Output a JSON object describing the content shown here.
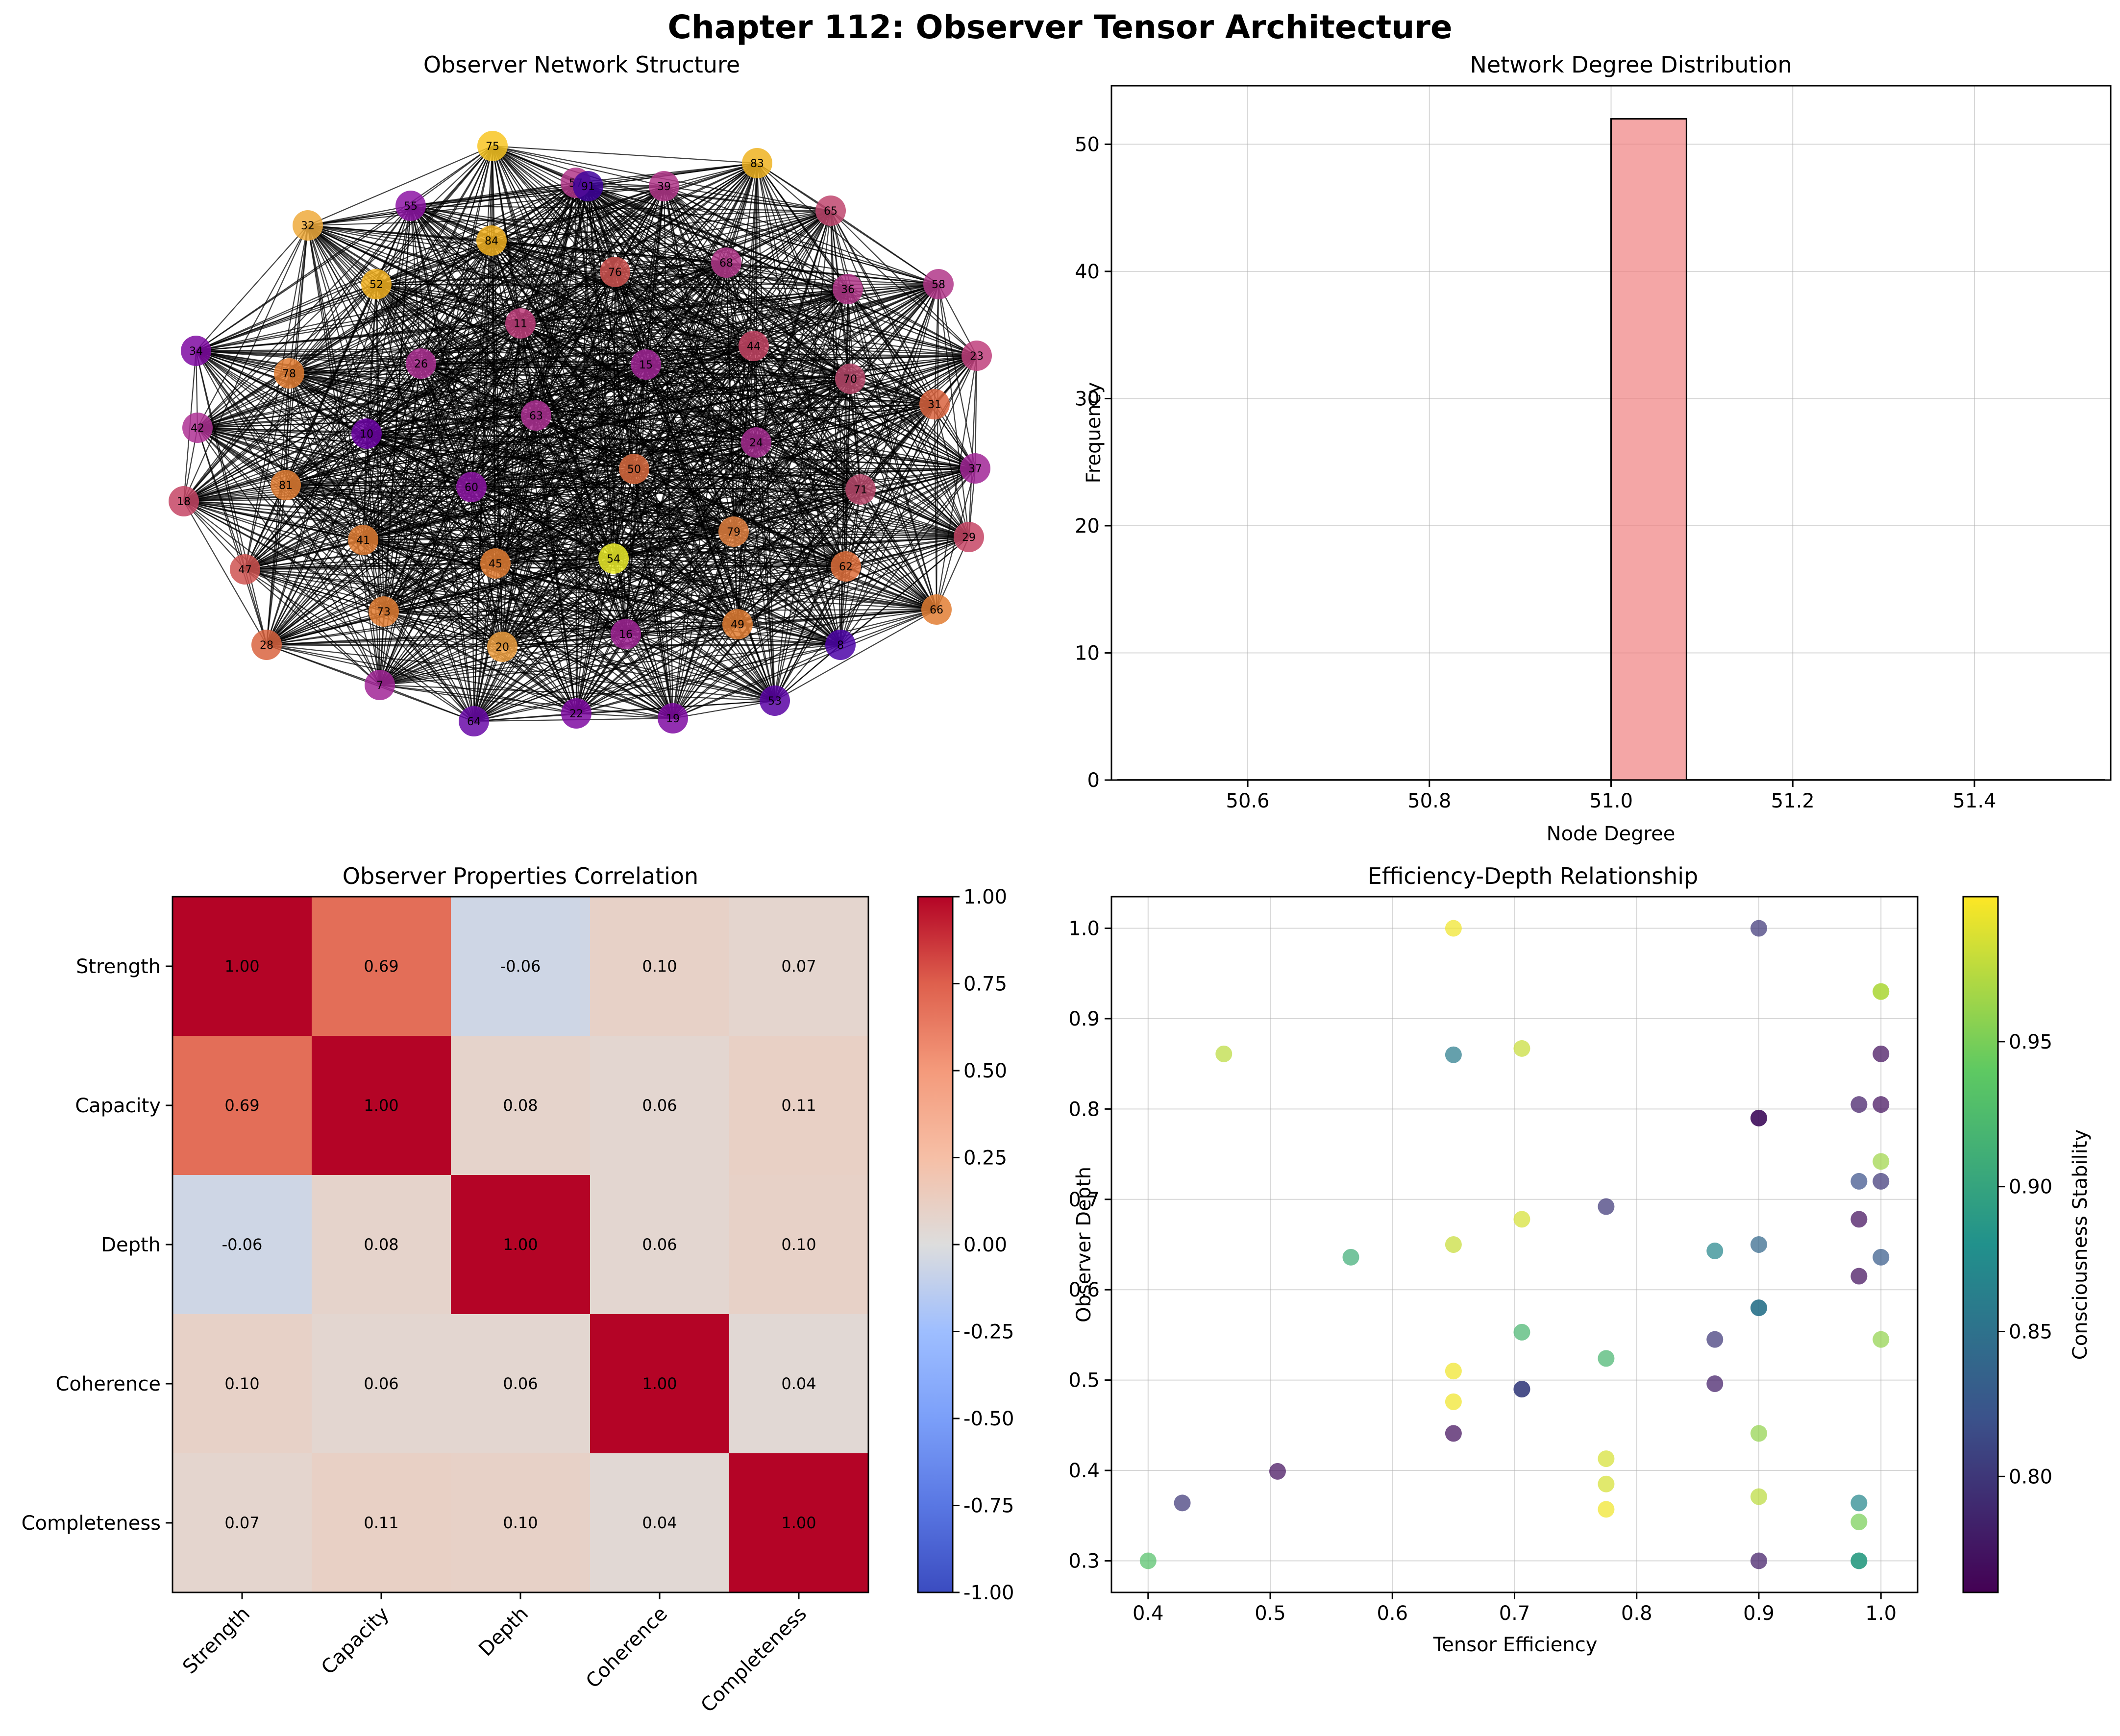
{
  "figure_title": "Chapter 112: Observer Tensor Architecture",
  "chart_data": [
    {
      "type": "network",
      "title": "Observer Network Structure",
      "node_labels": [
        "75",
        "83",
        "57",
        "39",
        "55",
        "32",
        "84",
        "76",
        "68",
        "65",
        "58",
        "52",
        "36",
        "34",
        "78",
        "11",
        "44",
        "23",
        "26",
        "15",
        "70",
        "42",
        "10",
        "63",
        "24",
        "50",
        "31",
        "37",
        "18",
        "81",
        "60",
        "71",
        "41",
        "79",
        "47",
        "45",
        "54",
        "62",
        "29",
        "73",
        "66",
        "28",
        "49",
        "16",
        "20",
        "8",
        "7",
        "53",
        "64",
        "22",
        "19",
        "91"
      ],
      "node_colors": [
        "#F8C523",
        "#EFB321",
        "#B2378A",
        "#B2378A",
        "#8D15A4",
        "#EEAA3C",
        "#F2B121",
        "#CF5451",
        "#B2378A",
        "#BF466F",
        "#B2378A",
        "#F2B121",
        "#B2378A",
        "#7F0AA2",
        "#E27E34",
        "#BF3F7D",
        "#C54565",
        "#BF3F7D",
        "#AE3194",
        "#A12696",
        "#B8496C",
        "#AE3194",
        "#6D04A6",
        "#AE3194",
        "#A52C8F",
        "#D96B3F",
        "#D9643F",
        "#A12696",
        "#C54565",
        "#E27E34",
        "#8D15A4",
        "#B8496C",
        "#E27E34",
        "#E2803F",
        "#CF5451",
        "#E27E34",
        "#ECED2A",
        "#DF6F3B",
        "#C54565",
        "#E27E34",
        "#E27E34",
        "#D9643F",
        "#E27E34",
        "#A12696",
        "#F0A142",
        "#4D05A8",
        "#A12696",
        "#5A03A4",
        "#6A0BA8",
        "#7F0AA2",
        "#7F0AA2",
        "#3F049C"
      ]
    },
    {
      "type": "bar",
      "title": "Network Degree Distribution",
      "xlabel": "Node Degree",
      "ylabel": "Frequency",
      "xlim": [
        50.45,
        51.55
      ],
      "ylim": [
        0,
        54.6
      ],
      "x_ticks": [
        "50.6",
        "50.8",
        "51.0",
        "51.2",
        "51.4"
      ],
      "y_ticks": [
        "0",
        "10",
        "20",
        "30",
        "40",
        "50"
      ],
      "bars": [
        {
          "x_start": 51.0,
          "x_end": 51.083,
          "value": 52
        }
      ],
      "bar_color": "#F08080",
      "grid": true
    },
    {
      "type": "heatmap",
      "title": "Observer Properties Correlation",
      "rows": [
        "Strength",
        "Capacity",
        "Depth",
        "Coherence",
        "Completeness"
      ],
      "columns": [
        "Strength",
        "Capacity",
        "Depth",
        "Coherence",
        "Completeness"
      ],
      "values": [
        [
          1.0,
          0.69,
          -0.06,
          0.1,
          0.07
        ],
        [
          0.69,
          1.0,
          0.08,
          0.06,
          0.11
        ],
        [
          -0.06,
          0.08,
          1.0,
          0.06,
          0.1
        ],
        [
          0.1,
          0.06,
          0.06,
          1.0,
          0.04
        ],
        [
          0.07,
          0.11,
          0.1,
          0.04,
          1.0
        ]
      ],
      "labels": [
        [
          "1.00",
          "0.69",
          "-0.06",
          "0.10",
          "0.07"
        ],
        [
          "0.69",
          "1.00",
          "0.08",
          "0.06",
          "0.11"
        ],
        [
          "-0.06",
          "0.08",
          "1.00",
          "0.06",
          "0.10"
        ],
        [
          "0.10",
          "0.06",
          "0.06",
          "1.00",
          "0.04"
        ],
        [
          "0.07",
          "0.11",
          "0.10",
          "0.04",
          "1.00"
        ]
      ],
      "colormap": "coolwarm",
      "colorbar_ticks": [
        "1.00",
        "0.75",
        "0.50",
        "0.25",
        "0.00",
        "-0.25",
        "-0.50",
        "-0.75",
        "-1.00"
      ],
      "vmin": -1.0,
      "vmax": 1.0
    },
    {
      "type": "scatter",
      "title": "Efficiency-Depth Relationship",
      "xlabel": "Tensor Efficiency",
      "ylabel": "Observer Depth",
      "colorbar_label": "Consciousness Stability",
      "colorbar_ticks": [
        "0.95",
        "0.90",
        "0.85",
        "0.80"
      ],
      "xlim": [
        0.37,
        1.03
      ],
      "ylim": [
        0.265,
        1.035
      ],
      "x_ticks": [
        "0.4",
        "0.5",
        "0.6",
        "0.7",
        "0.8",
        "0.9",
        "1.0"
      ],
      "y_ticks": [
        "0.3",
        "0.4",
        "0.5",
        "0.6",
        "0.7",
        "0.8",
        "0.9",
        "1.0"
      ],
      "clim": [
        0.76,
        1.0
      ],
      "grid": true,
      "points": [
        {
          "x": 0.65,
          "y": 1.0,
          "c": 0.995
        },
        {
          "x": 0.9,
          "y": 1.0,
          "c": 0.8
        },
        {
          "x": 1.0,
          "y": 0.93,
          "c": 0.975
        },
        {
          "x": 1.0,
          "y": 0.93,
          "c": 0.97
        },
        {
          "x": 0.462,
          "y": 0.861,
          "c": 0.975
        },
        {
          "x": 0.65,
          "y": 0.86,
          "c": 0.86
        },
        {
          "x": 0.706,
          "y": 0.867,
          "c": 0.98
        },
        {
          "x": 1.0,
          "y": 0.861,
          "c": 0.77
        },
        {
          "x": 0.982,
          "y": 0.805,
          "c": 0.78
        },
        {
          "x": 1.0,
          "y": 0.805,
          "c": 0.77
        },
        {
          "x": 0.9,
          "y": 0.79,
          "c": 0.78
        },
        {
          "x": 0.9,
          "y": 0.79,
          "c": 0.77
        },
        {
          "x": 1.0,
          "y": 0.742,
          "c": 0.965
        },
        {
          "x": 0.982,
          "y": 0.72,
          "c": 0.82
        },
        {
          "x": 1.0,
          "y": 0.72,
          "c": 0.8
        },
        {
          "x": 0.775,
          "y": 0.692,
          "c": 0.8
        },
        {
          "x": 0.706,
          "y": 0.678,
          "c": 0.985
        },
        {
          "x": 0.982,
          "y": 0.678,
          "c": 0.77
        },
        {
          "x": 0.65,
          "y": 0.65,
          "c": 0.98
        },
        {
          "x": 0.9,
          "y": 0.65,
          "c": 0.84
        },
        {
          "x": 0.566,
          "y": 0.636,
          "c": 0.91
        },
        {
          "x": 0.864,
          "y": 0.643,
          "c": 0.87
        },
        {
          "x": 1.0,
          "y": 0.636,
          "c": 0.83
        },
        {
          "x": 0.982,
          "y": 0.615,
          "c": 0.77
        },
        {
          "x": 0.9,
          "y": 0.58,
          "c": 0.86
        },
        {
          "x": 0.9,
          "y": 0.58,
          "c": 0.85
        },
        {
          "x": 0.706,
          "y": 0.553,
          "c": 0.92
        },
        {
          "x": 0.864,
          "y": 0.545,
          "c": 0.8
        },
        {
          "x": 1.0,
          "y": 0.545,
          "c": 0.96
        },
        {
          "x": 0.775,
          "y": 0.524,
          "c": 0.92
        },
        {
          "x": 0.65,
          "y": 0.51,
          "c": 0.995
        },
        {
          "x": 0.706,
          "y": 0.49,
          "c": 0.8
        },
        {
          "x": 0.706,
          "y": 0.49,
          "c": 0.81
        },
        {
          "x": 0.864,
          "y": 0.496,
          "c": 0.78
        },
        {
          "x": 0.65,
          "y": 0.476,
          "c": 0.995
        },
        {
          "x": 0.65,
          "y": 0.441,
          "c": 0.77
        },
        {
          "x": 0.9,
          "y": 0.441,
          "c": 0.96
        },
        {
          "x": 0.506,
          "y": 0.399,
          "c": 0.77
        },
        {
          "x": 0.775,
          "y": 0.413,
          "c": 0.985
        },
        {
          "x": 0.775,
          "y": 0.385,
          "c": 0.985
        },
        {
          "x": 0.428,
          "y": 0.364,
          "c": 0.8
        },
        {
          "x": 0.775,
          "y": 0.357,
          "c": 0.995
        },
        {
          "x": 0.9,
          "y": 0.371,
          "c": 0.975
        },
        {
          "x": 0.982,
          "y": 0.364,
          "c": 0.87
        },
        {
          "x": 0.982,
          "y": 0.343,
          "c": 0.95
        },
        {
          "x": 0.4,
          "y": 0.3,
          "c": 0.93
        },
        {
          "x": 0.9,
          "y": 0.3,
          "c": 0.78
        },
        {
          "x": 0.982,
          "y": 0.3,
          "c": 0.9
        },
        {
          "x": 0.982,
          "y": 0.3,
          "c": 0.89
        }
      ]
    }
  ]
}
